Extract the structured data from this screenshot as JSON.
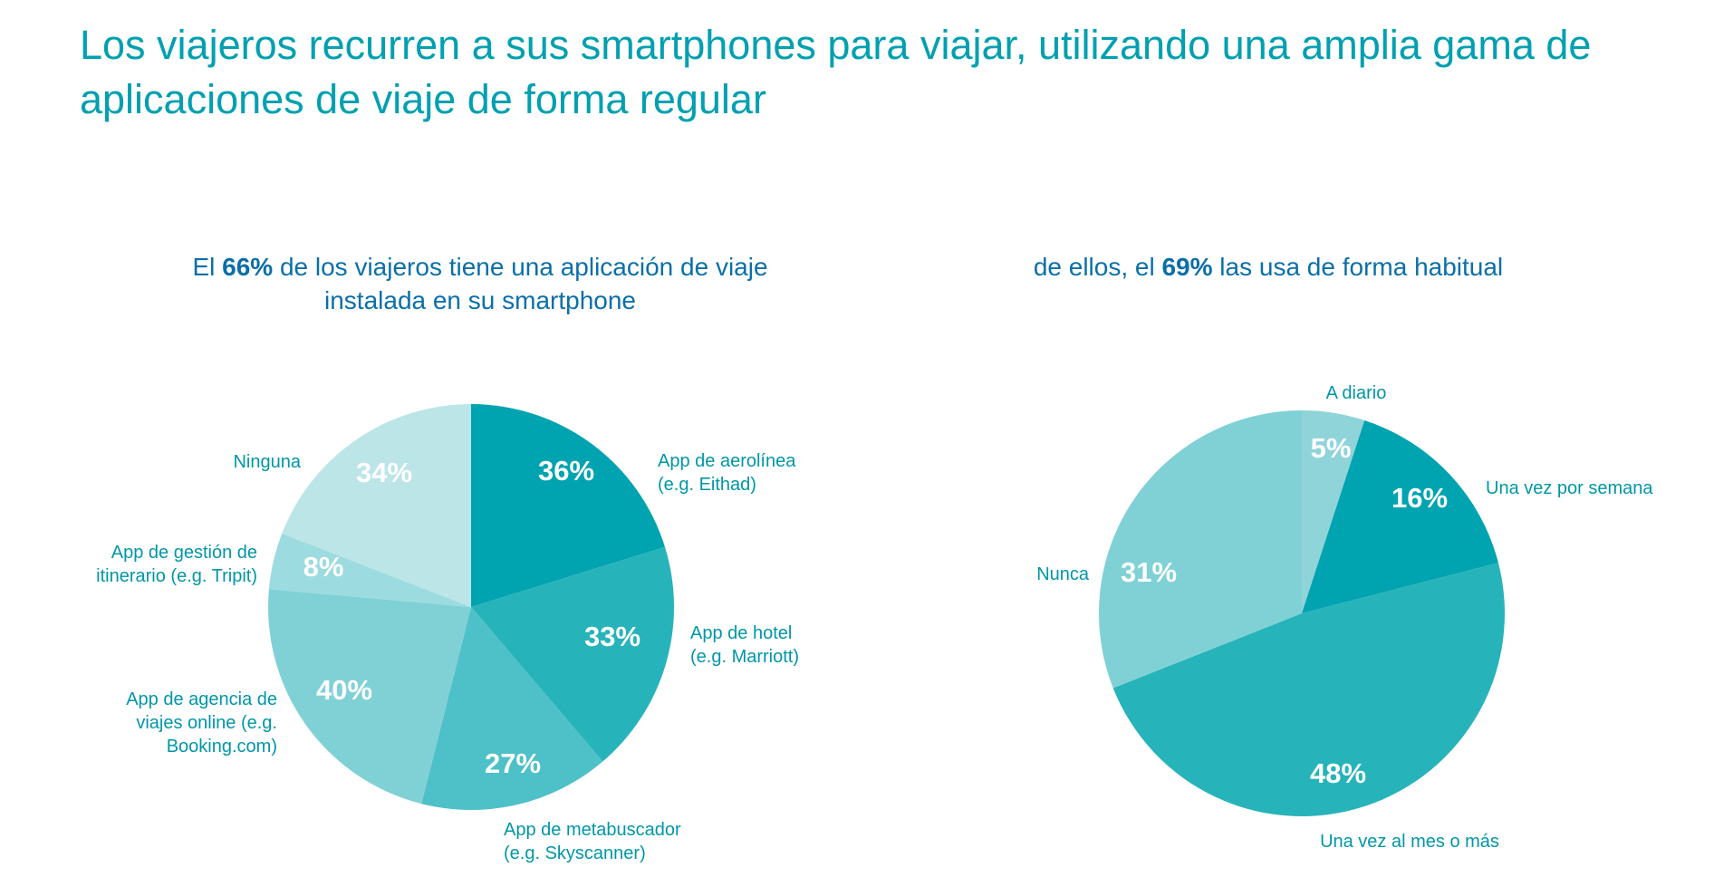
{
  "title": "Los viajeros recurren a sus smartphones para viajar, utilizando una amplia gama de aplicaciones de viaje de forma regular",
  "chart_data": [
    {
      "type": "pie",
      "title_parts": [
        "El ",
        "66%",
        " de los viajeros tiene una aplicación de viaje instalada en su smartphone"
      ],
      "slices": [
        {
          "label": [
            "App de aerolínea",
            "(e.g. Eithad)"
          ],
          "value": 36,
          "display": "36%",
          "color": "#00a3b0"
        },
        {
          "label": [
            "App de hotel",
            "(e.g. Marriott)"
          ],
          "value": 33,
          "display": "33%",
          "color": "#27b3ba"
        },
        {
          "label": [
            "App de metabuscador",
            "(e.g. Skyscanner)"
          ],
          "value": 27,
          "display": "27%",
          "color": "#4ec0c8"
        },
        {
          "label": [
            "App de agencia de",
            "viajes online (e.g.",
            "Booking.com)"
          ],
          "value": 40,
          "display": "40%",
          "color": "#80d1d6"
        },
        {
          "label": [
            "App de gestión de",
            "itinerario  (e.g. Tripit)"
          ],
          "value": 8,
          "display": "8%",
          "color": "#9cdbdf"
        },
        {
          "label": [
            "Ninguna"
          ],
          "value": 34,
          "display": "34%",
          "color": "#bce5e8"
        }
      ]
    },
    {
      "type": "pie",
      "title_parts": [
        "de ellos, el ",
        "69%",
        " las usa de forma habitual"
      ],
      "slices": [
        {
          "label": [
            "A diario"
          ],
          "value": 5,
          "display": "5%",
          "color": "#8fd4d9"
        },
        {
          "label": [
            "Una vez por semana"
          ],
          "value": 16,
          "display": "16%",
          "color": "#00a3b0"
        },
        {
          "label": [
            "Una vez al mes o más"
          ],
          "value": 48,
          "display": "48%",
          "color": "#27b3ba"
        },
        {
          "label": [
            "Nunca"
          ],
          "value": 31,
          "display": "31%",
          "color": "#80d1d6"
        }
      ]
    }
  ]
}
